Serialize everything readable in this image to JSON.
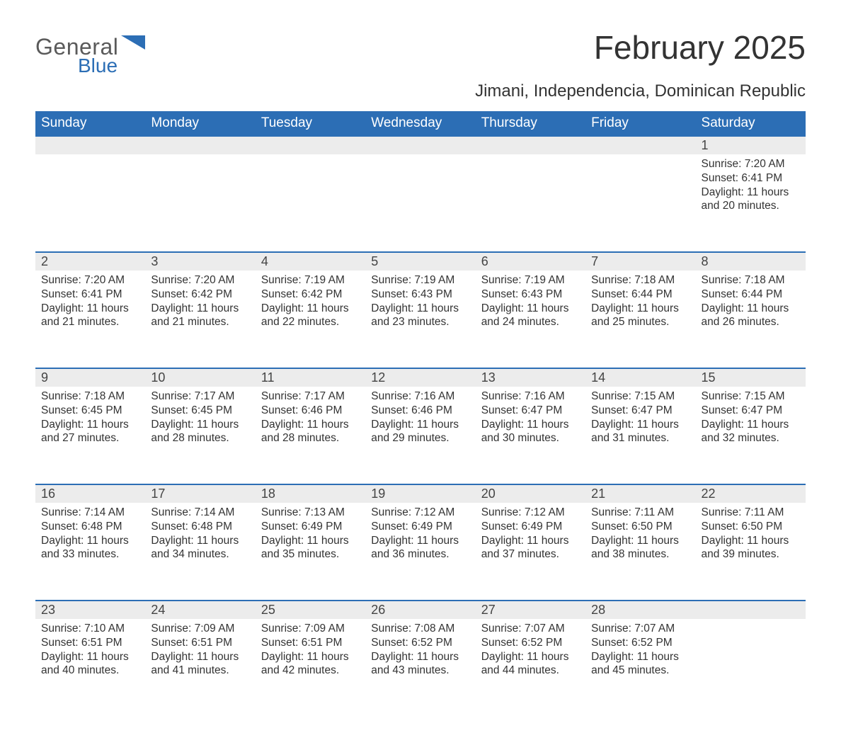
{
  "brand": {
    "word1": "General",
    "word2": "Blue",
    "word1_color": "#5a5a5a",
    "word2_color": "#2c6eb5"
  },
  "title": "February 2025",
  "location": "Jimani, Independencia, Dominican Republic",
  "colors": {
    "header_bg": "#2c6eb5",
    "header_text": "#ffffff",
    "daynum_bg": "#ececec",
    "row_separator": "#2c6eb5",
    "body_text": "#333333",
    "page_bg": "#ffffff"
  },
  "fonts": {
    "title_size_pt": 34,
    "subtitle_size_pt": 18,
    "header_size_pt": 14,
    "body_size_pt": 11.5
  },
  "layout": {
    "columns": 7,
    "week_rows": 5,
    "first_day_of_week": "Sunday",
    "blanks_before_first": 6
  },
  "weekdays": [
    "Sunday",
    "Monday",
    "Tuesday",
    "Wednesday",
    "Thursday",
    "Friday",
    "Saturday"
  ],
  "days": [
    {
      "n": 1,
      "sunrise": "7:20 AM",
      "sunset": "6:41 PM",
      "daylight": "11 hours and 20 minutes."
    },
    {
      "n": 2,
      "sunrise": "7:20 AM",
      "sunset": "6:41 PM",
      "daylight": "11 hours and 21 minutes."
    },
    {
      "n": 3,
      "sunrise": "7:20 AM",
      "sunset": "6:42 PM",
      "daylight": "11 hours and 21 minutes."
    },
    {
      "n": 4,
      "sunrise": "7:19 AM",
      "sunset": "6:42 PM",
      "daylight": "11 hours and 22 minutes."
    },
    {
      "n": 5,
      "sunrise": "7:19 AM",
      "sunset": "6:43 PM",
      "daylight": "11 hours and 23 minutes."
    },
    {
      "n": 6,
      "sunrise": "7:19 AM",
      "sunset": "6:43 PM",
      "daylight": "11 hours and 24 minutes."
    },
    {
      "n": 7,
      "sunrise": "7:18 AM",
      "sunset": "6:44 PM",
      "daylight": "11 hours and 25 minutes."
    },
    {
      "n": 8,
      "sunrise": "7:18 AM",
      "sunset": "6:44 PM",
      "daylight": "11 hours and 26 minutes."
    },
    {
      "n": 9,
      "sunrise": "7:18 AM",
      "sunset": "6:45 PM",
      "daylight": "11 hours and 27 minutes."
    },
    {
      "n": 10,
      "sunrise": "7:17 AM",
      "sunset": "6:45 PM",
      "daylight": "11 hours and 28 minutes."
    },
    {
      "n": 11,
      "sunrise": "7:17 AM",
      "sunset": "6:46 PM",
      "daylight": "11 hours and 28 minutes."
    },
    {
      "n": 12,
      "sunrise": "7:16 AM",
      "sunset": "6:46 PM",
      "daylight": "11 hours and 29 minutes."
    },
    {
      "n": 13,
      "sunrise": "7:16 AM",
      "sunset": "6:47 PM",
      "daylight": "11 hours and 30 minutes."
    },
    {
      "n": 14,
      "sunrise": "7:15 AM",
      "sunset": "6:47 PM",
      "daylight": "11 hours and 31 minutes."
    },
    {
      "n": 15,
      "sunrise": "7:15 AM",
      "sunset": "6:47 PM",
      "daylight": "11 hours and 32 minutes."
    },
    {
      "n": 16,
      "sunrise": "7:14 AM",
      "sunset": "6:48 PM",
      "daylight": "11 hours and 33 minutes."
    },
    {
      "n": 17,
      "sunrise": "7:14 AM",
      "sunset": "6:48 PM",
      "daylight": "11 hours and 34 minutes."
    },
    {
      "n": 18,
      "sunrise": "7:13 AM",
      "sunset": "6:49 PM",
      "daylight": "11 hours and 35 minutes."
    },
    {
      "n": 19,
      "sunrise": "7:12 AM",
      "sunset": "6:49 PM",
      "daylight": "11 hours and 36 minutes."
    },
    {
      "n": 20,
      "sunrise": "7:12 AM",
      "sunset": "6:49 PM",
      "daylight": "11 hours and 37 minutes."
    },
    {
      "n": 21,
      "sunrise": "7:11 AM",
      "sunset": "6:50 PM",
      "daylight": "11 hours and 38 minutes."
    },
    {
      "n": 22,
      "sunrise": "7:11 AM",
      "sunset": "6:50 PM",
      "daylight": "11 hours and 39 minutes."
    },
    {
      "n": 23,
      "sunrise": "7:10 AM",
      "sunset": "6:51 PM",
      "daylight": "11 hours and 40 minutes."
    },
    {
      "n": 24,
      "sunrise": "7:09 AM",
      "sunset": "6:51 PM",
      "daylight": "11 hours and 41 minutes."
    },
    {
      "n": 25,
      "sunrise": "7:09 AM",
      "sunset": "6:51 PM",
      "daylight": "11 hours and 42 minutes."
    },
    {
      "n": 26,
      "sunrise": "7:08 AM",
      "sunset": "6:52 PM",
      "daylight": "11 hours and 43 minutes."
    },
    {
      "n": 27,
      "sunrise": "7:07 AM",
      "sunset": "6:52 PM",
      "daylight": "11 hours and 44 minutes."
    },
    {
      "n": 28,
      "sunrise": "7:07 AM",
      "sunset": "6:52 PM",
      "daylight": "11 hours and 45 minutes."
    }
  ],
  "labels": {
    "sunrise": "Sunrise:",
    "sunset": "Sunset:",
    "daylight": "Daylight:"
  }
}
